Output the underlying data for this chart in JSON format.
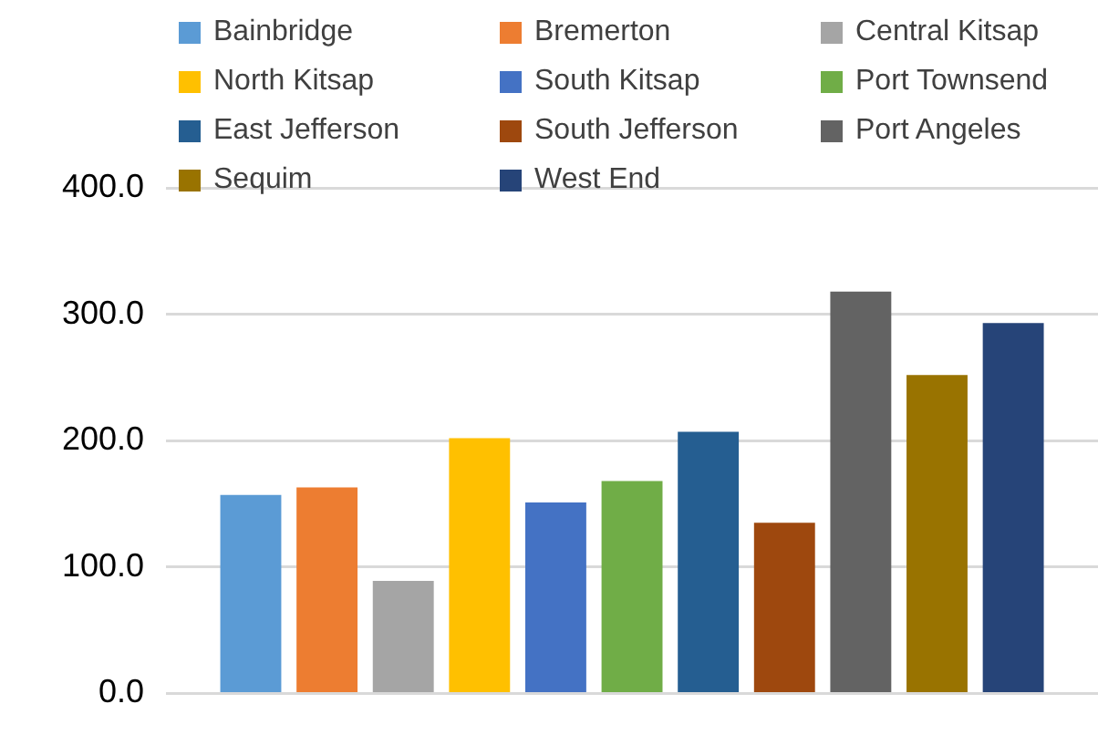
{
  "chart_data": {
    "type": "bar",
    "categories": [
      null
    ],
    "series": [
      {
        "name": "Bainbridge",
        "color": "#5b9bd5",
        "values": [
          157
        ]
      },
      {
        "name": "Bremerton",
        "color": "#ed7d31",
        "values": [
          163
        ]
      },
      {
        "name": "Central Kitsap",
        "color": "#a5a5a5",
        "values": [
          89
        ]
      },
      {
        "name": "North Kitsap",
        "color": "#ffc000",
        "values": [
          202
        ]
      },
      {
        "name": "South Kitsap",
        "color": "#4472c4",
        "values": [
          151
        ]
      },
      {
        "name": "Port Townsend",
        "color": "#70ad47",
        "values": [
          168
        ]
      },
      {
        "name": "East Jefferson",
        "color": "#255e91",
        "values": [
          207
        ]
      },
      {
        "name": "South Jefferson",
        "color": "#9e480e",
        "values": [
          135
        ]
      },
      {
        "name": "Port Angeles",
        "color": "#636363",
        "values": [
          318
        ]
      },
      {
        "name": "Sequim",
        "color": "#997300",
        "values": [
          252
        ]
      },
      {
        "name": "West End",
        "color": "#264478",
        "values": [
          293
        ]
      }
    ],
    "ylim": [
      0,
      400
    ],
    "yticks": [
      {
        "value": 0,
        "label": "0.0"
      },
      {
        "value": 100,
        "label": "100.0"
      },
      {
        "value": 200,
        "label": "200.0"
      },
      {
        "value": 300,
        "label": "300.0"
      },
      {
        "value": 400,
        "label": "400.0"
      }
    ],
    "grid": "y",
    "legend": "top",
    "tick_labels": "y"
  }
}
